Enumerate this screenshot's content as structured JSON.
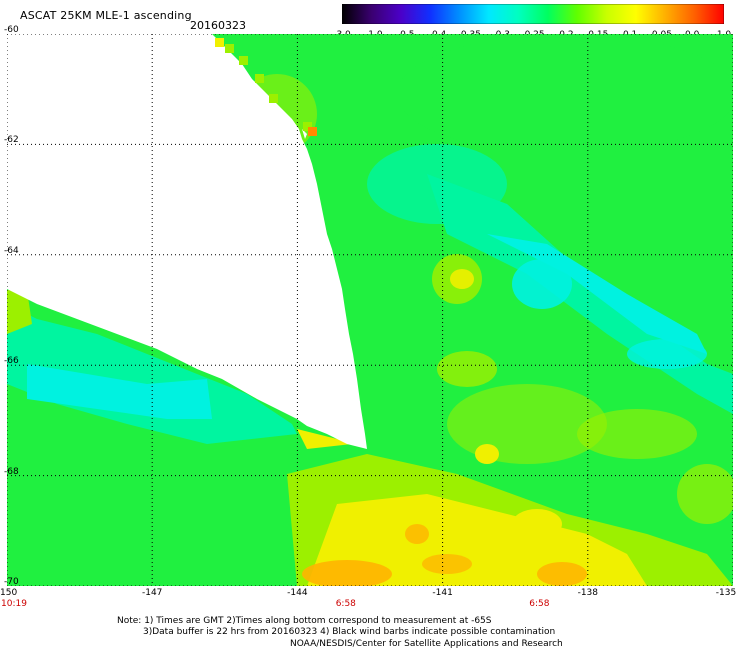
{
  "header": {
    "title": "ASCAT 25KM MLE-1 ascending",
    "date": "20160323"
  },
  "colorbar": {
    "tick_labels": [
      "-3.0",
      "-1.0",
      "-0.5",
      "-0.4",
      "-0.35",
      "-0.3",
      "-0.25",
      "-0.2",
      "-0.15",
      "-0.1",
      "-0.05",
      "0.0",
      "1.0"
    ],
    "colors": [
      "#000000",
      "#3a0070",
      "#4b00c8",
      "#1030ff",
      "#0090ff",
      "#00e8ff",
      "#00ffc0",
      "#00ff60",
      "#60ff00",
      "#c8ff00",
      "#ffff00",
      "#ffb000",
      "#ff6000",
      "#ff0000"
    ]
  },
  "map": {
    "lat_labels": [
      "-60",
      "-62",
      "-64",
      "-66",
      "-68",
      "-70"
    ],
    "lon_labels": [
      "-150",
      "-147",
      "-144",
      "-141",
      "-138",
      "-135"
    ],
    "lat_range": [
      -70,
      -60
    ],
    "lon_range": [
      -150,
      -135
    ],
    "grid": "dotted",
    "field_colors": {
      "cyan": "#00f2e0",
      "aqua": "#00f5a0",
      "green": "#20f040",
      "lime": "#9cf000",
      "yellow": "#f0f000",
      "orange": "#ffb400"
    }
  },
  "times": [
    {
      "label": "10:19",
      "lon": -150
    },
    {
      "label": "6:58",
      "lon": -143
    },
    {
      "label": "6:58",
      "lon": -139
    }
  ],
  "notes": {
    "line1": "Note: 1) Times are GMT 2)Times along bottom correspond to measurement at -65S",
    "line2": "3)Data buffer is 22 hrs from 20160323 4) Black wind barbs indicate possible contamination",
    "line3": "NOAA/NESDIS/Center for Satellite Applications and Research"
  }
}
